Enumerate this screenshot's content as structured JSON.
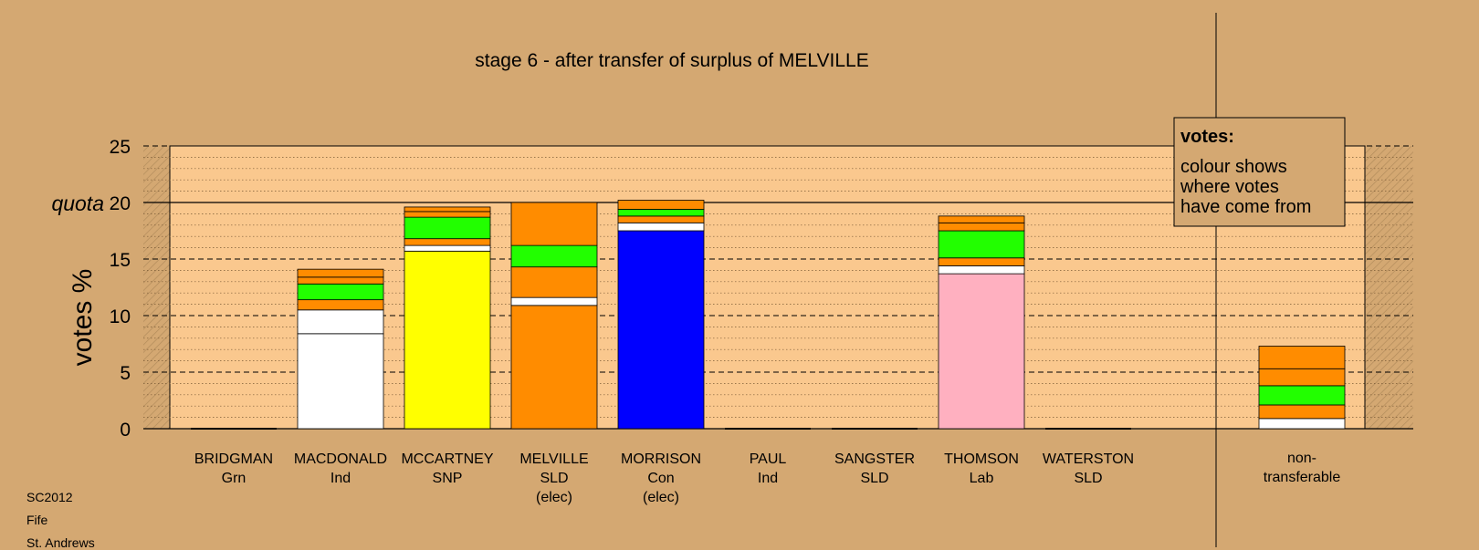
{
  "chart_data": {
    "type": "bar",
    "stacked": true,
    "title": "stage 6 - after transfer of surplus of MELVILLE",
    "ylabel": "votes %",
    "ylim": [
      0,
      25
    ],
    "yticks": [
      0,
      5,
      10,
      15,
      20,
      25
    ],
    "quota": {
      "label": "quota",
      "value": 20
    },
    "legend": {
      "placement": "top-right",
      "title": "votes:",
      "lines": [
        "colour shows",
        "where votes",
        "have come from"
      ]
    },
    "grid": true,
    "categories": [
      {
        "name": "BRIDGMAN",
        "party": "Grn",
        "note": ""
      },
      {
        "name": "MACDONALD",
        "party": "Ind",
        "note": ""
      },
      {
        "name": "MCCARTNEY",
        "party": "SNP",
        "note": ""
      },
      {
        "name": "MELVILLE",
        "party": "SLD",
        "note": "(elec)"
      },
      {
        "name": "MORRISON",
        "party": "Con",
        "note": "(elec)"
      },
      {
        "name": "PAUL",
        "party": "Ind",
        "note": ""
      },
      {
        "name": "SANGSTER",
        "party": "SLD",
        "note": ""
      },
      {
        "name": "THOMSON",
        "party": "Lab",
        "note": ""
      },
      {
        "name": "WATERSTON",
        "party": "SLD",
        "note": ""
      }
    ],
    "stacks": [
      [],
      [
        {
          "color": "#ffffff",
          "value": 8.4
        },
        {
          "color": "#ffffff",
          "value": 2.1
        },
        {
          "color": "#ff8c00",
          "value": 0.9
        },
        {
          "color": "#22ff00",
          "value": 1.4
        },
        {
          "color": "#ff8c00",
          "value": 0.6
        },
        {
          "color": "#ff8c00",
          "value": 0.7
        }
      ],
      [
        {
          "color": "#ffff00",
          "value": 15.7
        },
        {
          "color": "#ffffff",
          "value": 0.5
        },
        {
          "color": "#ff8c00",
          "value": 0.6
        },
        {
          "color": "#22ff00",
          "value": 1.9
        },
        {
          "color": "#ff8c00",
          "value": 0.5
        },
        {
          "color": "#ff8c00",
          "value": 0.4
        }
      ],
      [
        {
          "color": "#ff8c00",
          "value": 10.9
        },
        {
          "color": "#ffffff",
          "value": 0.7
        },
        {
          "color": "#ff8c00",
          "value": 2.7
        },
        {
          "color": "#22ff00",
          "value": 1.9
        },
        {
          "color": "#ff8c00",
          "value": 3.8
        }
      ],
      [
        {
          "color": "#0000ff",
          "value": 17.5
        },
        {
          "color": "#ffffff",
          "value": 0.7
        },
        {
          "color": "#ff8c00",
          "value": 0.6
        },
        {
          "color": "#22ff00",
          "value": 0.6
        },
        {
          "color": "#ff8c00",
          "value": 0.8
        }
      ],
      [],
      [],
      [
        {
          "color": "#ffb0c0",
          "value": 13.7
        },
        {
          "color": "#ffffff",
          "value": 0.7
        },
        {
          "color": "#ff8c00",
          "value": 0.7
        },
        {
          "color": "#22ff00",
          "value": 2.4
        },
        {
          "color": "#ff8c00",
          "value": 0.7
        },
        {
          "color": "#ff8c00",
          "value": 0.6
        }
      ],
      []
    ],
    "nontransferable": {
      "label_lines": [
        "non-",
        "transferable"
      ],
      "segments": [
        {
          "color": "#ffffff",
          "value": 0.9
        },
        {
          "color": "#ff8c00",
          "value": 1.2
        },
        {
          "color": "#22ff00",
          "value": 1.7
        },
        {
          "color": "#ff8c00",
          "value": 1.5
        },
        {
          "color": "#ff8c00",
          "value": 2.0
        }
      ]
    }
  },
  "footer": [
    "SC2012",
    "Fife",
    "St. Andrews"
  ]
}
